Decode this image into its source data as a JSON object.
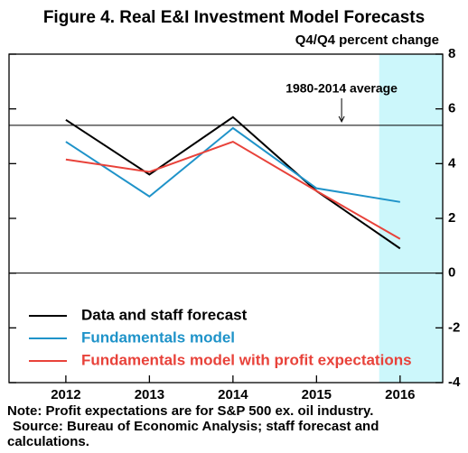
{
  "chart_data": {
    "type": "line",
    "title": "Figure 4. Real E&I Investment Model Forecasts",
    "subtitle": "Q4/Q4 percent change",
    "x": [
      2012,
      2013,
      2014,
      2015,
      2016
    ],
    "xlim": [
      2011.32,
      2016.51
    ],
    "xticks": [
      2012,
      2013,
      2014,
      2015,
      2016
    ],
    "ylim": [
      -4,
      8
    ],
    "yticks": [
      -4,
      -2,
      0,
      2,
      4,
      6,
      8
    ],
    "shaded_x": [
      2015.75,
      2016.51
    ],
    "shade_color": "#ccf7fb",
    "reference_line": {
      "value": 5.4,
      "label": "1980-2014 average",
      "arrow_x": 2015.3
    },
    "series": [
      {
        "name": "Data and staff forecast",
        "color": "#000000",
        "values": [
          5.6,
          3.6,
          5.7,
          3.0,
          0.9
        ]
      },
      {
        "name": "Fundamentals model",
        "color": "#1f93c9",
        "values": [
          4.8,
          2.8,
          5.3,
          3.1,
          2.6
        ]
      },
      {
        "name": "Fundamentals model with profit expectations",
        "color": "#e8423a",
        "values": [
          4.15,
          3.7,
          4.8,
          3.0,
          1.25
        ]
      }
    ],
    "legend": "lower left",
    "notes": [
      "Note: Profit expectations are for S&P 500 ex. oil industry.",
      "Source: Bureau of Economic Analysis; staff forecast and",
      "calculations."
    ]
  }
}
